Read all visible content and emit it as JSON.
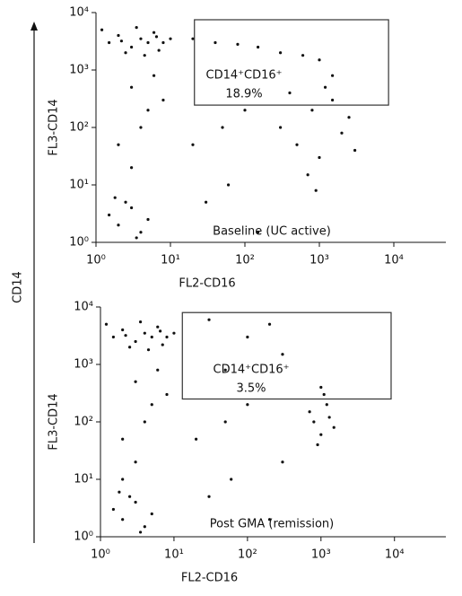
{
  "axis_label": "CD14",
  "chart_data": [
    {
      "type": "scatter",
      "xlabel": "FL2-CD16",
      "ylabel": "FL3-CD14",
      "log_x": true,
      "log_y": true,
      "xlim": [
        1,
        50000
      ],
      "ylim": [
        1,
        10000
      ],
      "xticks": [
        {
          "value": 1,
          "label": "10⁰"
        },
        {
          "value": 10,
          "label": "10¹"
        },
        {
          "value": 100,
          "label": "10²"
        },
        {
          "value": 1000,
          "label": "10³"
        },
        {
          "value": 10000,
          "label": "10⁴"
        }
      ],
      "yticks": [
        {
          "value": 1,
          "label": "10⁰"
        },
        {
          "value": 10,
          "label": "10¹"
        },
        {
          "value": 100,
          "label": "10²"
        },
        {
          "value": 1000,
          "label": "10³"
        },
        {
          "value": 10000,
          "label": "10⁴"
        }
      ],
      "color": "#111111",
      "gate": {
        "x": [
          21,
          8500
        ],
        "y": [
          245,
          7500
        ],
        "label": "CD14⁺CD16⁺",
        "percent": "18.9%"
      },
      "annotation": "Baseline (UC active)",
      "x": [
        1.5,
        2,
        3,
        4,
        5,
        6,
        2.5,
        8,
        1.2,
        3.5,
        7,
        10,
        4.5,
        2.2,
        6.5,
        20,
        40,
        80,
        150,
        300,
        600,
        1000,
        1500,
        300,
        500,
        800,
        1000,
        1500,
        2000,
        700,
        2500,
        400,
        1200,
        3000,
        900,
        3,
        4,
        2,
        5,
        3,
        6,
        8,
        1.5,
        2,
        3,
        4,
        2.5,
        5,
        3.5,
        1.8,
        20,
        60,
        100,
        30,
        150,
        50
      ],
      "values": [
        3000,
        4000,
        2500,
        3500,
        3000,
        4500,
        2000,
        3000,
        5000,
        5500,
        2200,
        3500,
        1800,
        3200,
        3800,
        3500,
        3000,
        2800,
        2500,
        2000,
        1800,
        1500,
        800,
        100,
        50,
        200,
        30,
        300,
        80,
        15,
        150,
        400,
        500,
        40,
        8,
        500,
        100,
        50,
        200,
        20,
        800,
        300,
        3,
        2,
        4,
        1.5,
        5,
        2.5,
        1.2,
        6,
        50,
        10,
        200,
        5,
        1.5,
        100
      ]
    },
    {
      "type": "scatter",
      "xlabel": "FL2-CD16",
      "ylabel": "FL3-CD14",
      "log_x": true,
      "log_y": true,
      "xlim": [
        1,
        50000
      ],
      "ylim": [
        1,
        10000
      ],
      "xticks": [
        {
          "value": 1,
          "label": "10⁰"
        },
        {
          "value": 10,
          "label": "10¹"
        },
        {
          "value": 100,
          "label": "10²"
        },
        {
          "value": 1000,
          "label": "10³"
        },
        {
          "value": 10000,
          "label": "10⁴"
        }
      ],
      "yticks": [
        {
          "value": 1,
          "label": "10⁰"
        },
        {
          "value": 10,
          "label": "10¹"
        },
        {
          "value": 100,
          "label": "10²"
        },
        {
          "value": 1000,
          "label": "10³"
        },
        {
          "value": 10000,
          "label": "10⁴"
        }
      ],
      "color": "#111111",
      "gate": {
        "x": [
          13,
          9000
        ],
        "y": [
          250,
          8000
        ],
        "label": "CD14⁺CD16⁺",
        "percent": "3.5%"
      },
      "annotation": "Post GMA (remission)",
      "x": [
        1.5,
        2,
        3,
        4,
        5,
        6,
        2.5,
        8,
        1.2,
        3.5,
        7,
        10,
        4.5,
        2.2,
        6.5,
        30,
        100,
        300,
        50,
        200,
        1000,
        800,
        1000,
        1200,
        1500,
        900,
        700,
        1300,
        1100,
        3,
        4,
        2,
        5,
        3,
        6,
        8,
        1.5,
        2,
        3,
        4,
        2.5,
        5,
        3.5,
        1.8,
        2,
        20,
        60,
        100,
        30,
        200,
        50,
        300
      ],
      "values": [
        3000,
        4000,
        2500,
        3500,
        3000,
        4500,
        2000,
        3000,
        5000,
        5500,
        2200,
        3500,
        1800,
        3200,
        3800,
        6000,
        3000,
        1500,
        800,
        5000,
        400,
        100,
        60,
        200,
        80,
        40,
        150,
        120,
        300,
        500,
        100,
        50,
        200,
        20,
        800,
        300,
        3,
        2,
        4,
        1.5,
        5,
        2.5,
        1.2,
        6,
        10,
        50,
        10,
        200,
        5,
        2,
        100,
        20
      ]
    }
  ]
}
